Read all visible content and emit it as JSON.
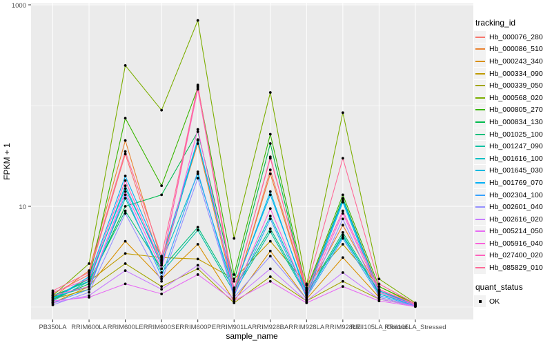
{
  "chart_data": {
    "type": "line",
    "title": "",
    "xlabel": "sample_name",
    "ylabel": "FPKM + 1",
    "y_scale": "log10",
    "y_axis": {
      "range": [
        0.79,
        1000
      ],
      "ticks": [
        {
          "value": 1000,
          "label": "1000"
        },
        {
          "value": 10,
          "label": "10"
        }
      ],
      "major_gridlines": [
        10,
        1000
      ],
      "minor_gridlines": [
        1,
        100
      ]
    },
    "categories": [
      "PB350LA",
      "RRIM600LA",
      "RRIM600LE",
      "RRIM600SE",
      "RRIM600PE",
      "RRIM901LA",
      "RRIM928BA",
      "RRIM928LA",
      "RRIM928LE",
      "RRII105LA_Control",
      "RRII105LA_Stressed"
    ],
    "series": [
      {
        "name": "Hb_000076_280",
        "color": "#F8766D",
        "values": [
          1.35,
          2.1,
          33,
          2.6,
          160,
          1.3,
          23,
          1.45,
          12,
          1.5,
          1.05
        ]
      },
      {
        "name": "Hb_000086_510",
        "color": "#EA8331",
        "values": [
          1.25,
          2.3,
          45,
          2.9,
          42,
          1.35,
          21,
          1.4,
          6.5,
          1.45,
          1.05
        ]
      },
      {
        "name": "Hb_000243_340",
        "color": "#D89000",
        "values": [
          1.1,
          1.6,
          4.5,
          1.9,
          4.2,
          1.15,
          3.6,
          1.2,
          3.1,
          1.25,
          1.02
        ]
      },
      {
        "name": "Hb_000334_090",
        "color": "#C09B00",
        "values": [
          1.15,
          1.8,
          3.4,
          3.1,
          3.0,
          1.9,
          4.5,
          1.7,
          4.2,
          1.6,
          1.05
        ]
      },
      {
        "name": "Hb_000339_050",
        "color": "#A3A500",
        "values": [
          1.2,
          1.5,
          2.7,
          1.6,
          2.4,
          1.1,
          2.0,
          1.15,
          1.8,
          1.2,
          1.02
        ]
      },
      {
        "name": "Hb_000568_020",
        "color": "#7CAE00",
        "values": [
          1.3,
          2.7,
          250,
          90,
          700,
          4.8,
          135,
          1.65,
          85,
          1.9,
          1.1
        ]
      },
      {
        "name": "Hb_000805_270",
        "color": "#39B600",
        "values": [
          1.25,
          1.9,
          75,
          16,
          150,
          2.1,
          52,
          1.5,
          13,
          1.6,
          1.08
        ]
      },
      {
        "name": "Hb_000834_130",
        "color": "#00BB4E",
        "values": [
          1.2,
          1.7,
          10,
          13,
          55,
          1.8,
          42,
          1.4,
          12,
          1.45,
          1.05
        ]
      },
      {
        "name": "Hb_001025_100",
        "color": "#00BF7D",
        "values": [
          1.3,
          1.8,
          9,
          2.4,
          6.2,
          1.5,
          6.0,
          1.35,
          5.5,
          1.4,
          1.04
        ]
      },
      {
        "name": "Hb_001247_090",
        "color": "#00C1A3",
        "values": [
          1.25,
          1.6,
          12,
          2.2,
          5.8,
          1.4,
          5.6,
          1.3,
          5.2,
          1.35,
          1.04
        ]
      },
      {
        "name": "Hb_001616_100",
        "color": "#00BFC4",
        "values": [
          1.2,
          1.9,
          15,
          2.8,
          21,
          1.45,
          8.0,
          1.35,
          5.0,
          1.4,
          1.05
        ]
      },
      {
        "name": "Hb_001645_030",
        "color": "#00BAE0",
        "values": [
          1.15,
          1.8,
          16,
          2.6,
          45,
          1.5,
          14,
          1.3,
          11,
          1.35,
          1.04
        ]
      },
      {
        "name": "Hb_001769_070",
        "color": "#00B0F6",
        "values": [
          1.2,
          2.0,
          20,
          3.0,
          46,
          1.55,
          13,
          1.4,
          11.5,
          1.45,
          1.05
        ]
      },
      {
        "name": "Hb_002304_100",
        "color": "#35A2FF",
        "values": [
          1.1,
          1.5,
          13,
          2.0,
          22,
          1.3,
          7.5,
          1.25,
          4.8,
          1.3,
          1.03
        ]
      },
      {
        "name": "Hb_002601_040",
        "color": "#9590FF",
        "values": [
          1.05,
          1.4,
          8.5,
          1.8,
          19,
          1.25,
          3.2,
          1.2,
          7.5,
          1.25,
          1.02
        ]
      },
      {
        "name": "Hb_002616_020",
        "color": "#C77CFF",
        "values": [
          1.1,
          1.3,
          2.3,
          1.5,
          2.6,
          1.2,
          2.4,
          1.15,
          2.2,
          1.2,
          1.02
        ]
      },
      {
        "name": "Hb_005214_050",
        "color": "#E76BF3",
        "values": [
          1.15,
          1.25,
          1.7,
          1.35,
          2.1,
          1.15,
          1.8,
          1.1,
          1.6,
          1.15,
          1.01
        ]
      },
      {
        "name": "Hb_005916_040",
        "color": "#FA62DB",
        "values": [
          1.3,
          1.6,
          14,
          2.4,
          58,
          1.35,
          9.5,
          1.3,
          8.5,
          1.4,
          1.04
        ]
      },
      {
        "name": "Hb_027400_020",
        "color": "#FF62BC",
        "values": [
          1.4,
          1.9,
          18,
          2.7,
          145,
          1.45,
          31,
          1.45,
          9.0,
          1.5,
          1.06
        ]
      },
      {
        "name": "Hb_085829_010",
        "color": "#FF6A98",
        "values": [
          1.45,
          2.2,
          35,
          3.2,
          155,
          1.5,
          30,
          1.55,
          30,
          1.7,
          1.08
        ]
      }
    ],
    "legend": {
      "title": "tracking_id",
      "position": "right"
    },
    "quant_status": {
      "title": "quant_status",
      "items": [
        {
          "label": "OK",
          "marker": "point",
          "color": "#000000"
        }
      ]
    },
    "point_color": "#000000",
    "colors": {
      "background": "#FFFFFF",
      "panel_background": "#EBEBEB",
      "gridline": "#FFFFFF",
      "axis_text": "#4D4D4D",
      "tick": "#333333",
      "text": "#000000",
      "legend_key_background": "#F2F2F2"
    }
  }
}
